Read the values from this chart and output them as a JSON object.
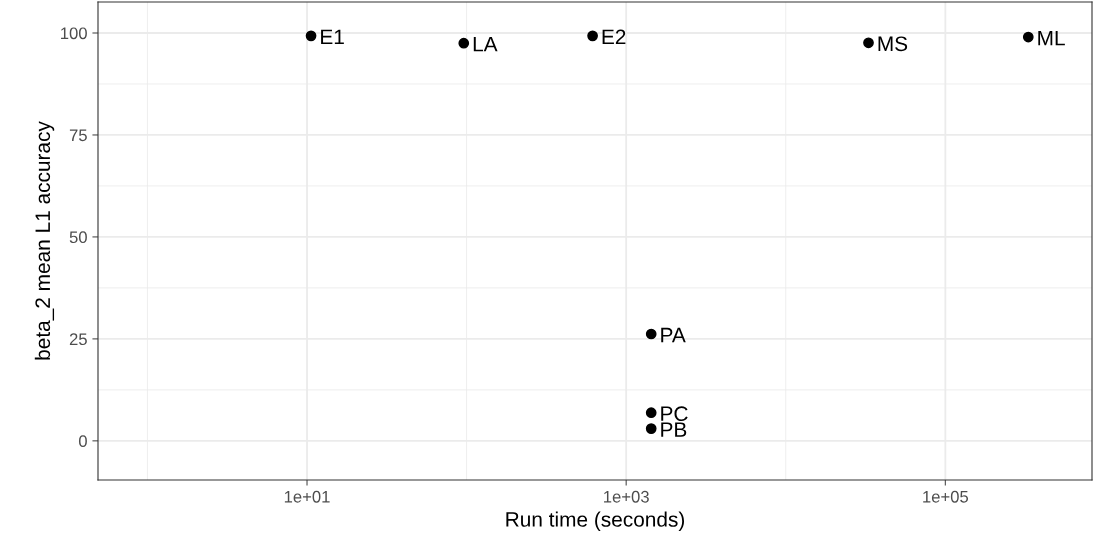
{
  "chart_data": {
    "type": "scatter",
    "xlabel": "Run time (seconds)",
    "ylabel": "beta_2 mean L1 accuracy",
    "x": [
      10.6,
      96,
      616,
      1435,
      1435,
      1435,
      33000,
      331000
    ],
    "series": [
      {
        "color": "#000000",
        "values": [
          99.3,
          97.5,
          99.3,
          26.2,
          6.9,
          3.0,
          97.6,
          99.0
        ]
      }
    ],
    "annotations": [
      {
        "text": "E1",
        "x": 10.6,
        "y": 99.3
      },
      {
        "text": "LA",
        "x": 96,
        "y": 97.5
      },
      {
        "text": "E2",
        "x": 616,
        "y": 99.3
      },
      {
        "text": "PA",
        "x": 1435,
        "y": 26.2
      },
      {
        "text": "PC",
        "x": 1435,
        "y": 6.9
      },
      {
        "text": "PB",
        "x": 1435,
        "y": 3.0
      },
      {
        "text": "MS",
        "x": 33000,
        "y": 97.6
      },
      {
        "text": "ML",
        "x": 331000,
        "y": 99.0
      }
    ],
    "log": "x",
    "xlim": [
      0.49,
      830000
    ],
    "ylim": [
      -9.6,
      107.6
    ],
    "xticks": [
      {
        "value": 10,
        "label": "1e+01"
      },
      {
        "value": 1000,
        "label": "1e+03"
      },
      {
        "value": 100000,
        "label": "1e+05"
      }
    ],
    "yticks": [
      0,
      25,
      50,
      75,
      100
    ],
    "grid": true,
    "marker": "circle"
  }
}
